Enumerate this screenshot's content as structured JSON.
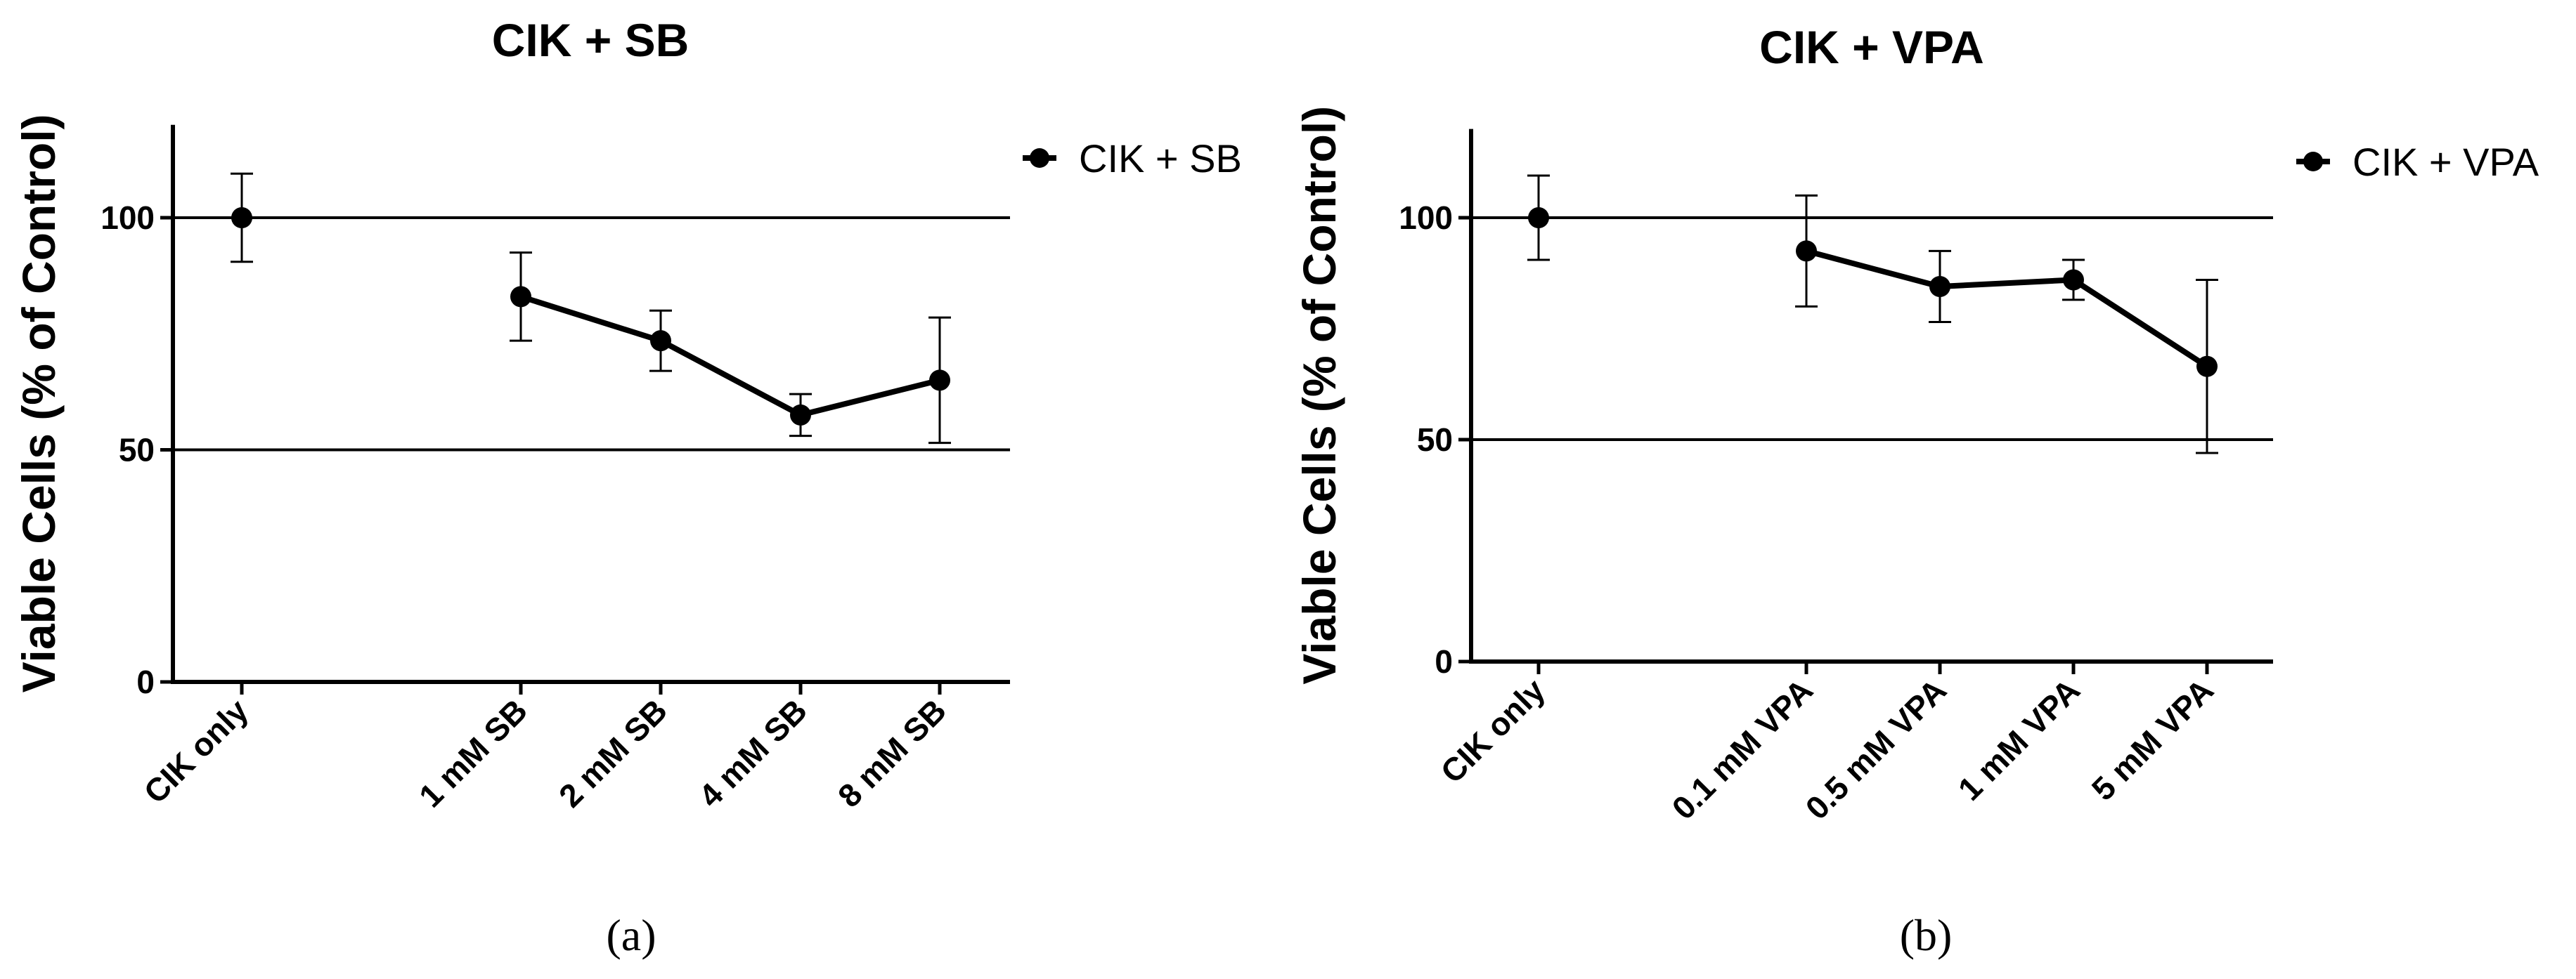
{
  "chart_data": [
    {
      "type": "line",
      "title": "CIK + SB",
      "ylabel": "Viable Cells (% of Control)",
      "xlabel": "",
      "ylim": [
        0,
        120
      ],
      "yticks": [
        "0",
        "50",
        "100"
      ],
      "reference_lines": [
        50,
        100
      ],
      "categories": [
        "CIK only",
        "1 mM SB",
        "2 mM SB",
        "4 mM SB",
        "8 mM SB"
      ],
      "series": [
        {
          "name": "CIK + SB",
          "values": [
            100,
            83,
            73.5,
            57.5,
            65
          ],
          "error": [
            9.5,
            9.5,
            6.5,
            4.5,
            13.5
          ],
          "connected_from_index": 1
        }
      ],
      "legend": "top-right outside",
      "caption": "(a)"
    },
    {
      "type": "line",
      "title": "CIK + VPA",
      "ylabel": "Viable Cells (% of Control)",
      "xlabel": "",
      "ylim": [
        0,
        120
      ],
      "yticks": [
        "0",
        "50",
        "100"
      ],
      "reference_lines": [
        50,
        100
      ],
      "categories": [
        "CIK only",
        "0.1 mM VPA",
        "0.5 mM VPA",
        "1 mM VPA",
        "5 mM VPA"
      ],
      "series": [
        {
          "name": "CIK + VPA",
          "values": [
            100,
            92.5,
            84.5,
            86,
            66.5
          ],
          "error": [
            9.5,
            12.5,
            8,
            4.5,
            19.5
          ],
          "connected_from_index": 1
        }
      ],
      "legend": "top-right outside",
      "caption": "(b)"
    }
  ]
}
